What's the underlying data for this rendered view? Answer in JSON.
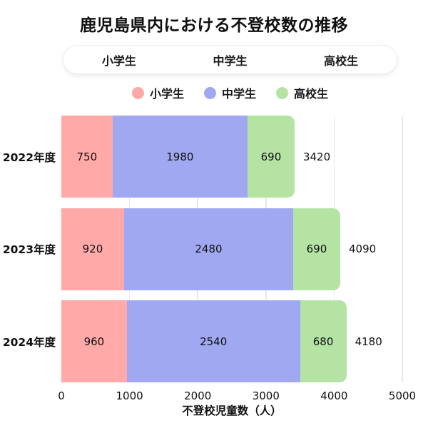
{
  "title": "鹿児島県内における不登校数の推移",
  "tabs": [
    "小学生",
    "中学生",
    "高校生"
  ],
  "legend": [
    {
      "label": "小学生",
      "color": "#FFA9A9"
    },
    {
      "label": "中学生",
      "color": "#9FA8F0"
    },
    {
      "label": "高校生",
      "color": "#B5E3A4"
    }
  ],
  "colors": {
    "elementary": "#FFA9A9",
    "junior_high": "#9FA8F0",
    "high_school": "#B5E3A4",
    "gridline": "#e9e9e9"
  },
  "chart_data": {
    "type": "bar",
    "orientation": "horizontal",
    "stacked": true,
    "title": "鹿児島県内における不登校数の推移",
    "categories": [
      "2022年度",
      "2023年度",
      "2024年度"
    ],
    "series": [
      {
        "name": "小学生",
        "color": "#FFA9A9",
        "values": [
          750,
          920,
          960
        ]
      },
      {
        "name": "中学生",
        "color": "#9FA8F0",
        "values": [
          1980,
          2480,
          2540
        ]
      },
      {
        "name": "高校生",
        "color": "#B5E3A4",
        "values": [
          690,
          690,
          680
        ]
      }
    ],
    "totals": [
      3420,
      4090,
      4180
    ],
    "xlabel": "不登校児童数（人）",
    "ylabel": "",
    "xlim": [
      0,
      5000
    ],
    "xticks": [
      0,
      1000,
      2000,
      3000,
      4000,
      5000
    ],
    "grid": "vertical",
    "legend_position": "top"
  }
}
